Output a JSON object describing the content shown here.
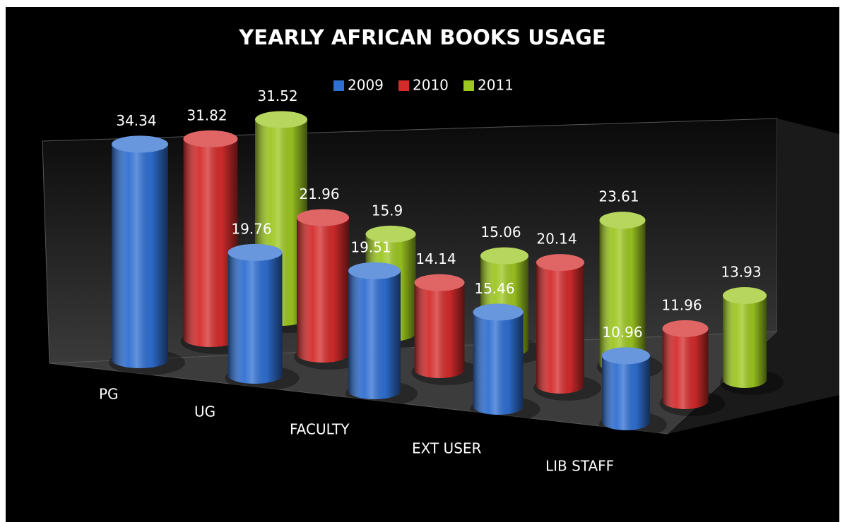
{
  "chart_data": {
    "type": "bar",
    "title": "YEARLY AFRICAN BOOKS USAGE",
    "categories": [
      "PG",
      "UG",
      "FACULTY",
      "EXT USER",
      "LIB STAFF"
    ],
    "series": [
      {
        "name": "2009",
        "color": "#2f6fd2",
        "values": [
          34.34,
          19.76,
          19.51,
          15.46,
          10.96
        ]
      },
      {
        "name": "2010",
        "color": "#d42b2b",
        "values": [
          31.82,
          21.96,
          14.14,
          20.14,
          11.96
        ]
      },
      {
        "name": "2011",
        "color": "#9cc620",
        "values": [
          31.52,
          15.9,
          15.06,
          23.61,
          13.93
        ]
      }
    ],
    "legend": "top"
  }
}
